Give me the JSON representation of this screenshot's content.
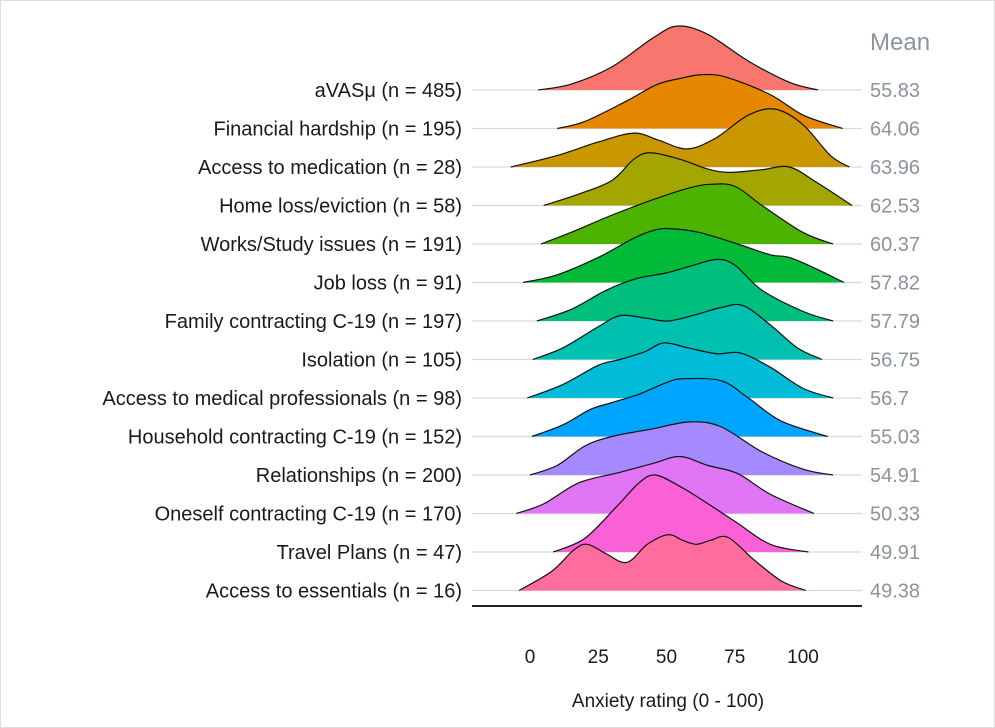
{
  "chart_data": {
    "type": "ridgeline",
    "xlabel": "Anxiety rating (0 - 100)",
    "xlim": [
      -10,
      120
    ],
    "xticks": [
      0,
      25,
      50,
      75,
      100
    ],
    "grid": true,
    "mean_header": "Mean",
    "series": [
      {
        "name": "aVASμ (n = 485)",
        "mean": "55.83",
        "color": "#F8766D",
        "profile": [
          [
            3,
            0
          ],
          [
            15,
            0.15
          ],
          [
            30,
            0.6
          ],
          [
            45,
            1.35
          ],
          [
            54,
            1.66
          ],
          [
            65,
            1.45
          ],
          [
            80,
            0.75
          ],
          [
            95,
            0.2
          ],
          [
            105.5,
            0
          ]
        ]
      },
      {
        "name": "Financial hardship (n = 195)",
        "mean": "64.06",
        "color": "#E58700",
        "profile": [
          [
            10,
            0
          ],
          [
            20,
            0.18
          ],
          [
            35,
            0.7
          ],
          [
            46.5,
            1.14
          ],
          [
            55,
            1.3
          ],
          [
            63,
            1.4
          ],
          [
            72,
            1.33
          ],
          [
            88,
            0.88
          ],
          [
            100,
            0.35
          ],
          [
            114.5,
            0
          ]
        ]
      },
      {
        "name": "Access to medication (n = 28)",
        "mean": "63.96",
        "color": "#C99800",
        "profile": [
          [
            -7,
            0
          ],
          [
            10,
            0.3
          ],
          [
            25,
            0.65
          ],
          [
            38,
            0.88
          ],
          [
            47,
            0.7
          ],
          [
            57.5,
            0.47
          ],
          [
            68,
            0.75
          ],
          [
            80,
            1.35
          ],
          [
            90,
            1.5
          ],
          [
            100,
            1.1
          ],
          [
            110,
            0.3
          ],
          [
            117,
            0
          ]
        ]
      },
      {
        "name": "Home loss/eviction (n = 58)",
        "mean": "62.53",
        "color": "#A3A500",
        "profile": [
          [
            5,
            0
          ],
          [
            18,
            0.3
          ],
          [
            30,
            0.65
          ],
          [
            38,
            1.2
          ],
          [
            44,
            1.37
          ],
          [
            55,
            1.2
          ],
          [
            65,
            0.95
          ],
          [
            73,
            0.86
          ],
          [
            85,
            0.93
          ],
          [
            95,
            1.0
          ],
          [
            105,
            0.6
          ],
          [
            118,
            0
          ]
        ]
      },
      {
        "name": "Works/Study issues (n = 191)",
        "mean": "60.37",
        "color": "#4CB400",
        "profile": [
          [
            4,
            0
          ],
          [
            15,
            0.3
          ],
          [
            30,
            0.75
          ],
          [
            45,
            1.15
          ],
          [
            58,
            1.45
          ],
          [
            66,
            1.55
          ],
          [
            75,
            1.5
          ],
          [
            85,
            1.0
          ],
          [
            100,
            0.3
          ],
          [
            111,
            0
          ]
        ]
      },
      {
        "name": "Job loss (n = 91)",
        "mean": "57.82",
        "color": "#00BA38",
        "profile": [
          [
            -2.5,
            0
          ],
          [
            10,
            0.2
          ],
          [
            25,
            0.65
          ],
          [
            38,
            1.15
          ],
          [
            45,
            1.35
          ],
          [
            51,
            1.4
          ],
          [
            62,
            1.3
          ],
          [
            76,
            1.0
          ],
          [
            88,
            0.72
          ],
          [
            95,
            0.65
          ],
          [
            105,
            0.35
          ],
          [
            115,
            0
          ]
        ]
      },
      {
        "name": "Family contracting C-19 (n = 197)",
        "mean": "57.79",
        "color": "#00BF7D",
        "profile": [
          [
            2.5,
            0
          ],
          [
            15,
            0.3
          ],
          [
            28,
            0.8
          ],
          [
            39,
            1.1
          ],
          [
            50,
            1.25
          ],
          [
            60,
            1.45
          ],
          [
            68.5,
            1.6
          ],
          [
            75,
            1.45
          ],
          [
            85,
            0.8
          ],
          [
            100,
            0.25
          ],
          [
            111,
            0
          ]
        ]
      },
      {
        "name": "Isolation (n = 105)",
        "mean": "56.75",
        "color": "#00C0AF",
        "profile": [
          [
            1,
            0
          ],
          [
            12,
            0.3
          ],
          [
            25,
            0.85
          ],
          [
            33,
            1.14
          ],
          [
            42,
            1.08
          ],
          [
            50.5,
            1.0
          ],
          [
            60,
            1.15
          ],
          [
            70,
            1.35
          ],
          [
            78,
            1.4
          ],
          [
            88,
            0.9
          ],
          [
            98,
            0.3
          ],
          [
            107,
            0
          ]
        ]
      },
      {
        "name": "Access to medical professionals (n = 98)",
        "mean": "56.7",
        "color": "#00BCD8",
        "profile": [
          [
            -1,
            0
          ],
          [
            12,
            0.35
          ],
          [
            25,
            0.85
          ],
          [
            33,
            1.0
          ],
          [
            42,
            1.2
          ],
          [
            49,
            1.43
          ],
          [
            58,
            1.3
          ],
          [
            68.5,
            1.15
          ],
          [
            77,
            1.17
          ],
          [
            88,
            0.8
          ],
          [
            100,
            0.25
          ],
          [
            111,
            0
          ]
        ]
      },
      {
        "name": "Household contracting C-19 (n = 152)",
        "mean": "55.03",
        "color": "#00A5FF",
        "profile": [
          [
            0.7,
            0
          ],
          [
            12,
            0.3
          ],
          [
            22,
            0.7
          ],
          [
            30,
            0.88
          ],
          [
            40,
            1.1
          ],
          [
            50,
            1.4
          ],
          [
            56,
            1.5
          ],
          [
            70,
            1.45
          ],
          [
            80,
            1.0
          ],
          [
            92,
            0.4
          ],
          [
            109,
            0
          ]
        ]
      },
      {
        "name": "Relationships (n = 200)",
        "mean": "54.91",
        "color": "#A58AFF",
        "profile": [
          [
            0,
            0
          ],
          [
            10,
            0.25
          ],
          [
            20,
            0.75
          ],
          [
            30,
            1.0
          ],
          [
            45,
            1.2
          ],
          [
            58.6,
            1.38
          ],
          [
            70,
            1.25
          ],
          [
            85,
            0.6
          ],
          [
            100,
            0.15
          ],
          [
            111,
            0
          ]
        ]
      },
      {
        "name": "Oneself contracting C-19 (n = 170)",
        "mean": "50.33",
        "color": "#E076F5",
        "profile": [
          [
            -5,
            0
          ],
          [
            5,
            0.25
          ],
          [
            18,
            0.8
          ],
          [
            33,
            1.07
          ],
          [
            45,
            1.3
          ],
          [
            55,
            1.48
          ],
          [
            65,
            1.25
          ],
          [
            76,
            1.04
          ],
          [
            88,
            0.5
          ],
          [
            104,
            0
          ]
        ]
      },
      {
        "name": "Travel Plans (n = 47)",
        "mean": "49.91",
        "color": "#FB61D7",
        "profile": [
          [
            8.5,
            0
          ],
          [
            20,
            0.35
          ],
          [
            32,
            1.2
          ],
          [
            40,
            1.8
          ],
          [
            46,
            2.0
          ],
          [
            55,
            1.7
          ],
          [
            62,
            1.4
          ],
          [
            75,
            0.8
          ],
          [
            88,
            0.2
          ],
          [
            102,
            0
          ]
        ]
      },
      {
        "name": "Access to essentials (n = 16)",
        "mean": "49.38",
        "color": "#FF6C9E",
        "profile": [
          [
            -4,
            0
          ],
          [
            8,
            0.5
          ],
          [
            16,
            1.05
          ],
          [
            21,
            1.2
          ],
          [
            28,
            0.95
          ],
          [
            35.5,
            0.73
          ],
          [
            43,
            1.2
          ],
          [
            50.5,
            1.45
          ],
          [
            56,
            1.3
          ],
          [
            61,
            1.2
          ],
          [
            66,
            1.3
          ],
          [
            72.5,
            1.38
          ],
          [
            82,
            0.8
          ],
          [
            92,
            0.25
          ],
          [
            101,
            0
          ]
        ]
      }
    ]
  }
}
